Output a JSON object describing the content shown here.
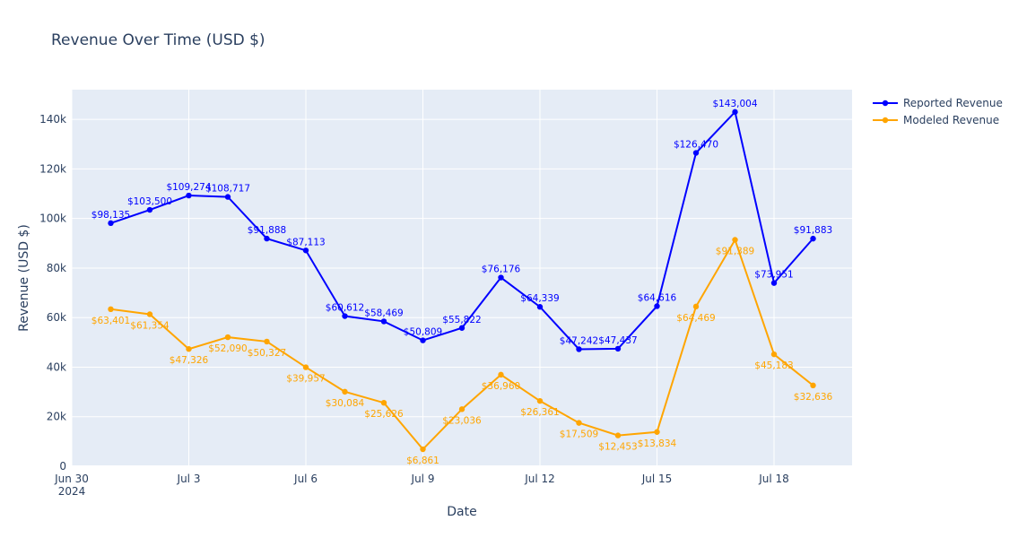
{
  "chart_data": {
    "type": "line",
    "title": "Revenue Over Time (USD $)",
    "xlabel": "Date",
    "ylabel": "Revenue (USD $)",
    "x_axis_type": "date",
    "xlim": [
      "2024-06-30",
      "2024-07-20"
    ],
    "ylim": [
      0,
      152000
    ],
    "grid": true,
    "legend_position": "top-right",
    "x_ticks": [
      {
        "date": "2024-06-30",
        "label": "Jun 30",
        "sublabel": "2024"
      },
      {
        "date": "2024-07-03",
        "label": "Jul 3"
      },
      {
        "date": "2024-07-06",
        "label": "Jul 6"
      },
      {
        "date": "2024-07-09",
        "label": "Jul 9"
      },
      {
        "date": "2024-07-12",
        "label": "Jul 12"
      },
      {
        "date": "2024-07-15",
        "label": "Jul 15"
      },
      {
        "date": "2024-07-18",
        "label": "Jul 18"
      }
    ],
    "y_ticks": [
      {
        "value": 0,
        "label": "0"
      },
      {
        "value": 20000,
        "label": "20k"
      },
      {
        "value": 40000,
        "label": "40k"
      },
      {
        "value": 60000,
        "label": "60k"
      },
      {
        "value": 80000,
        "label": "80k"
      },
      {
        "value": 100000,
        "label": "100k"
      },
      {
        "value": 120000,
        "label": "120k"
      },
      {
        "value": 140000,
        "label": "140k"
      }
    ],
    "x": [
      "2024-07-01",
      "2024-07-02",
      "2024-07-03",
      "2024-07-04",
      "2024-07-05",
      "2024-07-06",
      "2024-07-07",
      "2024-07-08",
      "2024-07-09",
      "2024-07-10",
      "2024-07-11",
      "2024-07-12",
      "2024-07-13",
      "2024-07-14",
      "2024-07-15",
      "2024-07-16",
      "2024-07-17",
      "2024-07-18",
      "2024-07-19"
    ],
    "series": [
      {
        "name": "Reported Revenue",
        "color": "#0000ff",
        "label_position": "above",
        "values": [
          98135,
          103500,
          109274,
          108717,
          91888,
          87113,
          60612,
          58469,
          50809,
          55822,
          76176,
          64339,
          47242,
          47437,
          64616,
          126470,
          143004,
          73951,
          91883
        ],
        "labels": [
          "$98,135",
          "$103,500",
          "$109,274",
          "$108,717",
          "$91,888",
          "$87,113",
          "$60,612",
          "$58,469",
          "$50,809",
          "$55,822",
          "$76,176",
          "$64,339",
          "$47,242",
          "$47,437",
          "$64,616",
          "$126,470",
          "$143,004",
          "$73,951",
          "$91,883"
        ]
      },
      {
        "name": "Modeled Revenue",
        "color": "#ffa500",
        "label_position": "below",
        "values": [
          63401,
          61354,
          47326,
          52090,
          50327,
          39957,
          30084,
          25626,
          6861,
          23036,
          36960,
          26361,
          17509,
          12453,
          13834,
          64469,
          91389,
          45183,
          32636
        ],
        "labels": [
          "$63,401",
          "$61,354",
          "$47,326",
          "$52,090",
          "$50,327",
          "$39,957",
          "$30,084",
          "$25,626",
          "$6,861",
          "$23,036",
          "$36,960",
          "$26,361",
          "$17,509",
          "$12,453",
          "$13,834",
          "$64,469",
          "$91,389",
          "$45,183",
          "$32,636"
        ]
      }
    ]
  },
  "colors": {
    "plot_background": "#e5ecf6",
    "gridline": "#ffffff",
    "text": "#2a3f5f"
  }
}
